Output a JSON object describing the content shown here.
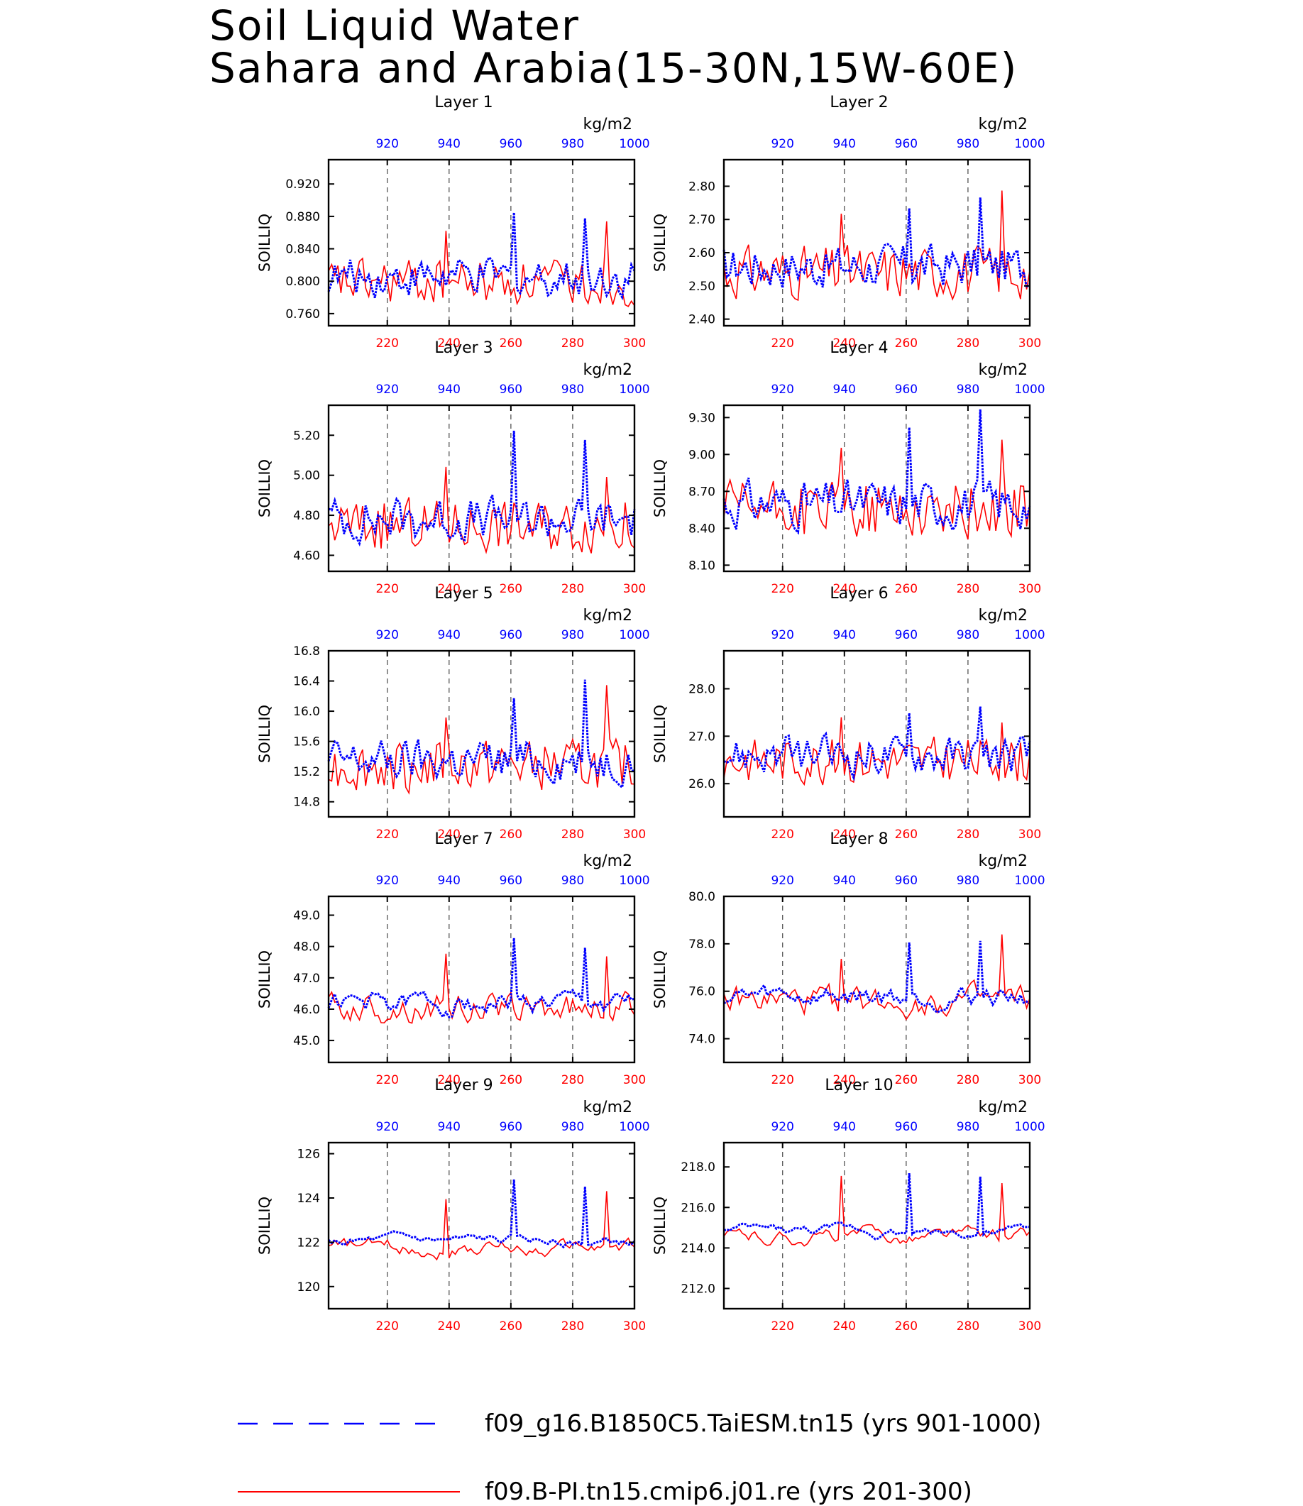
{
  "title": {
    "line1": "Soil Liquid Water",
    "line2": "Sahara and Arabia(15-30N,15W-60E)"
  },
  "units": "kg/m2",
  "ylabel": "SOILLIQ",
  "legend": [
    {
      "label": "f09_g16.B1850C5.TaiESM.tn15 (yrs 901-1000)",
      "color": "#0000ff",
      "style": "dashed"
    },
    {
      "label": "f09.B-PI.tn15.cmip6.j01.re (yrs 201-300)",
      "color": "#ff0000",
      "style": "solid"
    }
  ],
  "colors": {
    "series_a": "#0000ff",
    "series_b": "#ff0000",
    "axis": "#000000",
    "refline": "#555555"
  },
  "chart_data": [
    {
      "type": "line",
      "title": "Layer 1",
      "ylim": [
        0.745,
        0.95
      ],
      "yticks": [
        "0.760",
        "0.800",
        "0.840",
        "0.880",
        "0.920"
      ],
      "base": 0.805,
      "amp": 0.032,
      "seed": 1
    },
    {
      "type": "line",
      "title": "Layer 2",
      "ylim": [
        2.38,
        2.88
      ],
      "yticks": [
        "2.40",
        "2.50",
        "2.60",
        "2.70",
        "2.80"
      ],
      "base": 2.56,
      "amp": 0.09,
      "seed": 2
    },
    {
      "type": "line",
      "title": "Layer 3",
      "ylim": [
        4.52,
        5.35
      ],
      "yticks": [
        "4.60",
        "4.80",
        "5.00",
        "5.20"
      ],
      "base": 4.78,
      "amp": 0.15,
      "seed": 3
    },
    {
      "type": "line",
      "title": "Layer 4",
      "ylim": [
        8.05,
        9.4
      ],
      "yticks": [
        "8.10",
        "8.40",
        "8.70",
        "9.00",
        "9.30"
      ],
      "base": 8.6,
      "amp": 0.26,
      "seed": 4
    },
    {
      "type": "line",
      "title": "Layer 5",
      "ylim": [
        14.6,
        16.8
      ],
      "yticks": [
        "14.8",
        "15.2",
        "15.6",
        "16.0",
        "16.4",
        "16.8"
      ],
      "base": 15.35,
      "amp": 0.38,
      "seed": 5
    },
    {
      "type": "line",
      "title": "Layer 6",
      "ylim": [
        25.3,
        28.8
      ],
      "yticks": [
        "26.0",
        "27.0",
        "28.0"
      ],
      "base": 26.6,
      "amp": 0.55,
      "seed": 6
    },
    {
      "type": "line",
      "title": "Layer 7",
      "ylim": [
        44.3,
        49.6
      ],
      "yticks": [
        "45.0",
        "46.0",
        "47.0",
        "48.0",
        "49.0"
      ],
      "base": 46.2,
      "amp": 0.85,
      "seed": 7
    },
    {
      "type": "line",
      "title": "Layer 8",
      "ylim": [
        73.0,
        80.0
      ],
      "yticks": [
        "74.0",
        "76.0",
        "78.0",
        "80.0"
      ],
      "base": 75.8,
      "amp": 1.1,
      "seed": 8
    },
    {
      "type": "line",
      "title": "Layer 9",
      "ylim": [
        119.0,
        126.5
      ],
      "yticks": [
        "120",
        "122",
        "124",
        "126"
      ],
      "base": 122.0,
      "amp": 1.2,
      "seed": 9
    },
    {
      "type": "line",
      "title": "Layer 10",
      "ylim": [
        211.0,
        219.2
      ],
      "yticks": [
        "212.0",
        "214.0",
        "216.0",
        "218.0"
      ],
      "base": 214.8,
      "amp": 1.3,
      "seed": 10
    }
  ],
  "axes": {
    "x_bottom_ticks": [
      "220",
      "240",
      "260",
      "280",
      "300"
    ],
    "x_top_ticks": [
      "920",
      "940",
      "960",
      "980",
      "1000"
    ],
    "x_bottom_range": [
      201,
      300
    ],
    "x_top_range": [
      901,
      1000
    ]
  }
}
